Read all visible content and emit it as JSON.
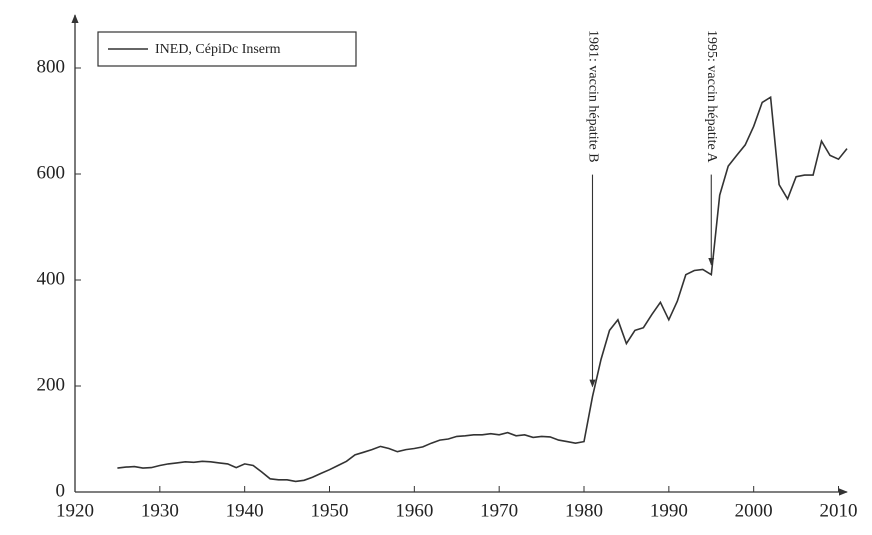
{
  "chart_data": {
    "type": "line",
    "x": [
      1925,
      1926,
      1927,
      1928,
      1929,
      1930,
      1931,
      1932,
      1933,
      1934,
      1935,
      1936,
      1937,
      1938,
      1939,
      1940,
      1941,
      1942,
      1943,
      1944,
      1945,
      1946,
      1947,
      1948,
      1949,
      1950,
      1951,
      1952,
      1953,
      1954,
      1955,
      1956,
      1957,
      1958,
      1959,
      1960,
      1961,
      1962,
      1963,
      1964,
      1965,
      1966,
      1967,
      1968,
      1969,
      1970,
      1971,
      1972,
      1973,
      1974,
      1975,
      1976,
      1977,
      1978,
      1979,
      1980,
      1981,
      1982,
      1983,
      1984,
      1985,
      1986,
      1987,
      1988,
      1989,
      1990,
      1991,
      1992,
      1993,
      1994,
      1995,
      1996,
      1997,
      1998,
      1999,
      2000,
      2001,
      2002,
      2003,
      2004,
      2005,
      2006,
      2007,
      2008,
      2009,
      2010,
      2011
    ],
    "series": [
      {
        "name": "INED, CépiDc Inserm",
        "color": "#333333",
        "values": [
          45,
          47,
          48,
          45,
          46,
          50,
          53,
          55,
          57,
          56,
          58,
          57,
          55,
          53,
          46,
          53,
          50,
          38,
          25,
          23,
          23,
          20,
          22,
          28,
          35,
          42,
          50,
          58,
          70,
          75,
          80,
          86,
          82,
          76,
          80,
          82,
          85,
          92,
          98,
          100,
          105,
          106,
          108,
          108,
          110,
          108,
          112,
          106,
          108,
          103,
          105,
          104,
          98,
          95,
          92,
          95,
          180,
          250,
          305,
          325,
          280,
          305,
          310,
          335,
          358,
          325,
          360,
          410,
          418,
          420,
          410,
          560,
          615,
          635,
          655,
          690,
          735,
          745,
          580,
          553,
          595,
          598,
          598,
          662,
          635,
          628,
          648
        ]
      }
    ],
    "xlim": [
      1920,
      2011
    ],
    "xticks": [
      1920,
      1930,
      1940,
      1950,
      1960,
      1970,
      1980,
      1990,
      2000,
      2010
    ],
    "ylim": [
      0,
      900
    ],
    "yticks": [
      0,
      200,
      400,
      600,
      800
    ],
    "legend": "upper left",
    "annotations": [
      {
        "text": "1981: vaccin hépatite B",
        "x": 1981
      },
      {
        "text": "1995: vaccin hépatite A",
        "x": 1995
      }
    ]
  }
}
